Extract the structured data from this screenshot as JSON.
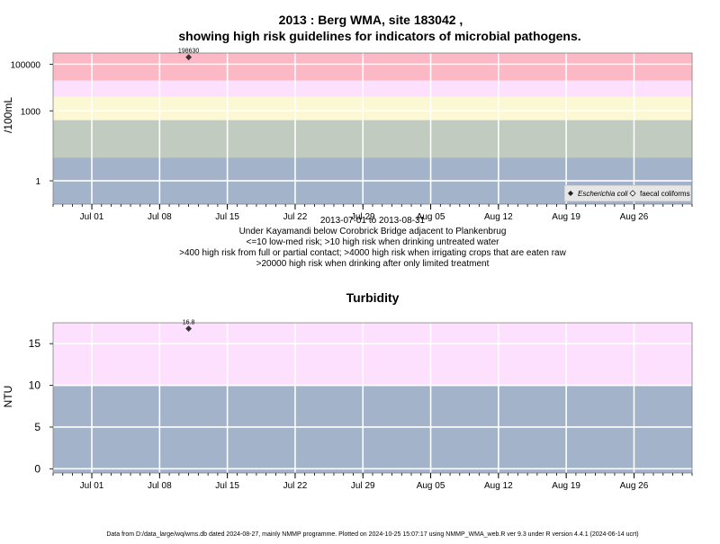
{
  "colors": {
    "band_low": "#a2b3ca",
    "band_mid": "#c2cbc0",
    "band_irrig": "#fcf8d4",
    "band_contact": "#fde0fd",
    "band_drink": "#fcb9c5",
    "grid": "#ffffff",
    "frame": "#808080",
    "point": "#333333"
  },
  "chart1": {
    "title_line1": "2013 : Berg WMA, site 183042 ,",
    "title_line2": "showing high risk guidelines for indicators of microbial pathogens.",
    "ylabel": "/100mL",
    "ytick_labels": [
      "1",
      "1000",
      "100000"
    ],
    "xtick_labels": [
      "Jul 01",
      "Jul 08",
      "Jul 15",
      "Jul 22",
      "Jul 29",
      "Aug 05",
      "Aug 12",
      "Aug 19",
      "Aug 26"
    ],
    "point_label": "198630",
    "legend_ecoli": "Escherichia coli",
    "legend_fc": "faecal coliforms",
    "notes": [
      "2013-07-01 to 2013-08-31",
      "Under Kayamandi below Corobrick Bridge adjacent to Plankenbrug",
      "<=10 low-med risk; >10 high risk when drinking untreated water",
      ">400 high risk from full or partial contact; >4000 high risk when irrigating crops that are eaten raw",
      ">20000 high risk when drinking after only limited treatment"
    ]
  },
  "chart2": {
    "title": "Turbidity",
    "ylabel": "NTU",
    "ytick_labels": [
      "0",
      "5",
      "10",
      "15"
    ],
    "xtick_labels": [
      "Jul 01",
      "Jul 08",
      "Jul 15",
      "Jul 22",
      "Jul 29",
      "Aug 05",
      "Aug 12",
      "Aug 19",
      "Aug 26"
    ],
    "point_label": "16.8"
  },
  "footer": "Data from D:/data_large/wq/wms.db dated 2024-08-27, mainly NMMP programme. Plotted on 2024-10-25 15:07:17 using NMMP_WMA_web.R ver 9.3 under R version 4.4.1 (2024-06-14 ucrt)",
  "chart_data": [
    {
      "type": "scatter",
      "title": "2013 : Berg WMA, site 183042 , showing high risk guidelines for indicators of microbial pathogens.",
      "ylabel": "/100mL",
      "y_scale": "log10",
      "xlim": [
        "2013-06-27",
        "2013-09-01"
      ],
      "ylim": [
        0.1,
        300000
      ],
      "x_ticks": [
        "2013-07-01",
        "2013-07-08",
        "2013-07-15",
        "2013-07-22",
        "2013-07-29",
        "2013-08-05",
        "2013-08-12",
        "2013-08-19",
        "2013-08-26"
      ],
      "y_ticks": [
        1,
        1000,
        100000
      ],
      "guideline_bands": [
        {
          "from": 0.1,
          "to": 10,
          "color": "#a2b3ca"
        },
        {
          "from": 10,
          "to": 400,
          "color": "#c2cbc0"
        },
        {
          "from": 400,
          "to": 4000,
          "color": "#fcf8d4"
        },
        {
          "from": 4000,
          "to": 20000,
          "color": "#fde0fd"
        },
        {
          "from": 20000,
          "to": 300000,
          "color": "#fcb9c5"
        }
      ],
      "grid": true,
      "legend_position": "bottom-right",
      "series": [
        {
          "name": "Escherichia coli",
          "marker": "filled-diamond",
          "points": [
            {
              "x": "2013-07-11",
              "y": 198630,
              "label": "198630"
            }
          ]
        },
        {
          "name": "faecal coliforms",
          "marker": "open-diamond",
          "points": []
        }
      ]
    },
    {
      "type": "scatter",
      "title": "Turbidity",
      "ylabel": "NTU",
      "xlim": [
        "2013-06-27",
        "2013-09-01"
      ],
      "ylim": [
        -0.5,
        17.5
      ],
      "x_ticks": [
        "2013-07-01",
        "2013-07-08",
        "2013-07-15",
        "2013-07-22",
        "2013-07-29",
        "2013-08-05",
        "2013-08-12",
        "2013-08-19",
        "2013-08-26"
      ],
      "y_ticks": [
        0,
        5,
        10,
        15
      ],
      "guideline_bands": [
        {
          "from": -0.5,
          "to": 10,
          "color": "#a2b3ca"
        },
        {
          "from": 10,
          "to": 17.5,
          "color": "#fde0fd"
        }
      ],
      "grid": true,
      "series": [
        {
          "marker": "filled-diamond",
          "points": [
            {
              "x": "2013-07-11",
              "y": 16.8,
              "label": "16.8"
            }
          ]
        }
      ]
    }
  ]
}
